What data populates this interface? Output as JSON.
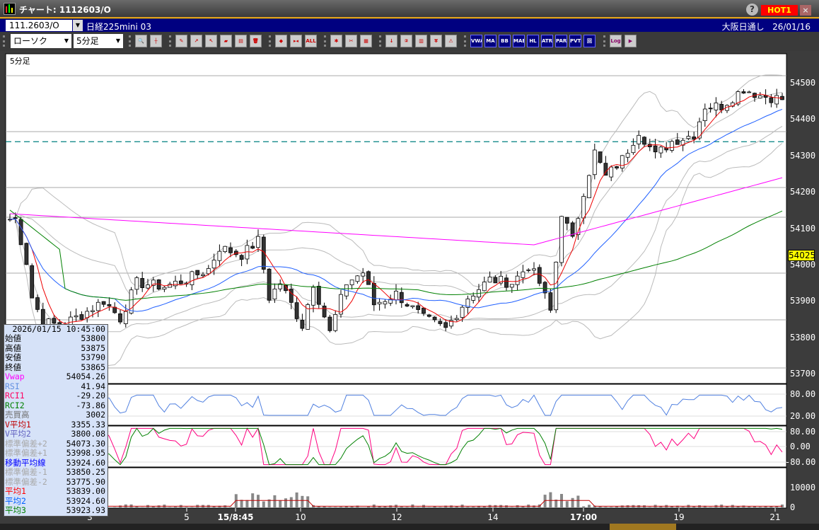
{
  "window": {
    "title": "チャート: 1112603/O",
    "help": "?",
    "hot": "HOT1",
    "close": "×"
  },
  "symbol": {
    "code": "111.2603/O",
    "name": "日経225mini 03",
    "market": "大阪日通し",
    "date": "26/01/16"
  },
  "toolbar": {
    "chart_type": "ローソク",
    "interval": "5分足",
    "buttons": [
      {
        "name": "zoom",
        "t": "🔍"
      },
      {
        "name": "crosshair",
        "t": "┼"
      },
      {
        "name": "pen",
        "t": "✎"
      },
      {
        "name": "trendline",
        "t": "↗"
      },
      {
        "name": "select",
        "t": "↖"
      },
      {
        "name": "eraser",
        "t": "▰"
      },
      {
        "name": "copy",
        "t": "▤"
      },
      {
        "name": "trash",
        "t": "🗑"
      },
      {
        "name": "zoom-in",
        "t": "◆"
      },
      {
        "name": "zoom-out",
        "t": "▸◂"
      },
      {
        "name": "all",
        "t": "ALL"
      },
      {
        "name": "settings",
        "t": "✱"
      },
      {
        "name": "tools",
        "t": "✂"
      },
      {
        "name": "color",
        "t": "▦"
      },
      {
        "name": "order",
        "t": "↓"
      },
      {
        "name": "ticker",
        "t": "②"
      },
      {
        "name": "board",
        "t": "▥"
      },
      {
        "name": "yen",
        "t": "¥"
      },
      {
        "name": "alert",
        "t": "⚠"
      }
    ],
    "indicators": [
      "VWAP",
      "MA",
      "BB",
      "MAE",
      "HL",
      "ATR",
      "PARA",
      "PVT",
      "回"
    ],
    "extra": [
      {
        "name": "log",
        "t": "Log"
      },
      {
        "name": "export",
        "t": "▶"
      }
    ]
  },
  "panel_label": "5分足",
  "legend": {
    "datetime": "2026/01/15 10:45:00",
    "rows": [
      {
        "label": "始値",
        "value": "53800",
        "color": "#000000"
      },
      {
        "label": "高値",
        "value": "53875",
        "color": "#000000"
      },
      {
        "label": "安値",
        "value": "53790",
        "color": "#000000"
      },
      {
        "label": "終値",
        "value": "53865",
        "color": "#000000"
      },
      {
        "label": "Vwap",
        "value": "54054.26",
        "color": "#ff00ff"
      },
      {
        "label": "RSI",
        "value": "41.94",
        "color": "#6090e0"
      },
      {
        "label": "RCI1",
        "value": "-29.20",
        "color": "#ff0060"
      },
      {
        "label": "RCI2",
        "value": "-73.86",
        "color": "#008000"
      },
      {
        "label": "売買高",
        "value": "3002",
        "color": "#707070"
      },
      {
        "label": "V平均1",
        "value": "3355.33",
        "color": "#c00000"
      },
      {
        "label": "V平均2",
        "value": "3800.08",
        "color": "#6060c0"
      },
      {
        "label": "標準偏差+2",
        "value": "54073.30",
        "color": "#a8a8a8"
      },
      {
        "label": "標準偏差+1",
        "value": "53998.95",
        "color": "#a8a8a8"
      },
      {
        "label": "移動平均線",
        "value": "53924.60",
        "color": "#0000ff"
      },
      {
        "label": "標準偏差-1",
        "value": "53850.25",
        "color": "#a8a8a8"
      },
      {
        "label": "標準偏差-2",
        "value": "53775.90",
        "color": "#a8a8a8"
      },
      {
        "label": "平均1",
        "value": "53839.00",
        "color": "#ff0000"
      },
      {
        "label": "平均2",
        "value": "53924.60",
        "color": "#0060ff"
      },
      {
        "label": "平均3",
        "value": "53923.93",
        "color": "#008000"
      }
    ]
  },
  "cursor_price": "54025",
  "price_axis": [
    "54500",
    "54400",
    "54300",
    "54200",
    "54100",
    "54000",
    "53900",
    "53800",
    "53700"
  ],
  "rsi_axis": [
    "80.00",
    "20.00"
  ],
  "rci_axis": [
    "80.00",
    "0.00",
    "-80.00"
  ],
  "vol_axis": [
    "10000",
    "0"
  ],
  "x_axis": [
    "3",
    "5",
    "15/8:45",
    "10",
    "12",
    "14",
    "17:00",
    "19",
    "21"
  ],
  "chart_data": {
    "type": "candlestick",
    "bars": 141,
    "ylim": [
      53700,
      54500
    ],
    "reference_line": 54338,
    "close_path": [
      [
        1,
        54125
      ],
      [
        3,
        54008
      ],
      [
        4,
        53910
      ],
      [
        6,
        53843
      ],
      [
        9,
        53833
      ],
      [
        13,
        53862
      ],
      [
        17,
        53901
      ],
      [
        20,
        53852
      ],
      [
        23,
        53950
      ],
      [
        28,
        53940
      ],
      [
        32,
        53959
      ],
      [
        36,
        53988
      ],
      [
        38,
        54047
      ],
      [
        42,
        54027
      ],
      [
        45,
        54066
      ],
      [
        47,
        53910
      ],
      [
        49,
        53950
      ],
      [
        53,
        53833
      ],
      [
        55,
        53950
      ],
      [
        58,
        53813
      ],
      [
        61,
        53950
      ],
      [
        64,
        53979
      ],
      [
        66,
        53891
      ],
      [
        70,
        53920
      ],
      [
        75,
        53852
      ],
      [
        79,
        53823
      ],
      [
        83,
        53910
      ],
      [
        87,
        53959
      ],
      [
        91,
        53950
      ],
      [
        94,
        53998
      ],
      [
        96,
        53950
      ],
      [
        98,
        53872
      ],
      [
        100,
        54144
      ],
      [
        102,
        54066
      ],
      [
        104,
        54202
      ],
      [
        106,
        54309
      ],
      [
        108,
        54241
      ],
      [
        111,
        54290
      ],
      [
        114,
        54368
      ],
      [
        117,
        54300
      ],
      [
        120,
        54339
      ],
      [
        124,
        54358
      ],
      [
        126,
        54436
      ],
      [
        129,
        54436
      ],
      [
        133,
        54484
      ],
      [
        136,
        54465
      ],
      [
        140,
        54455
      ]
    ]
  }
}
